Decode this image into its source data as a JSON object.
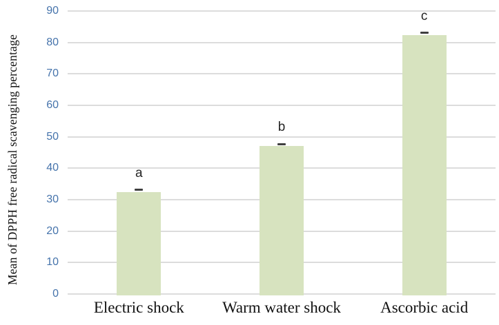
{
  "chart_data": {
    "type": "bar",
    "title": "",
    "xlabel": "",
    "ylabel": "Mean of DPPH free radical scavenging percentage",
    "categories": [
      "Electric shock",
      "Warm water shock",
      "Ascorbic acid"
    ],
    "values": [
      32.5,
      47,
      82.3
    ],
    "error_bars": [
      0.7,
      0.7,
      0.8
    ],
    "sig_letters": [
      "a",
      "b",
      "c"
    ],
    "ylim": [
      0,
      90
    ],
    "ytick_step": 10,
    "grid": true,
    "legend": false,
    "colors": {
      "bar_fill": "#d7e3bf",
      "gridline": "#dcdcdc",
      "tick_label": "#4573ab",
      "error_bar": "#3f3f3f",
      "text": "#262626",
      "background": "#ffffff"
    }
  }
}
